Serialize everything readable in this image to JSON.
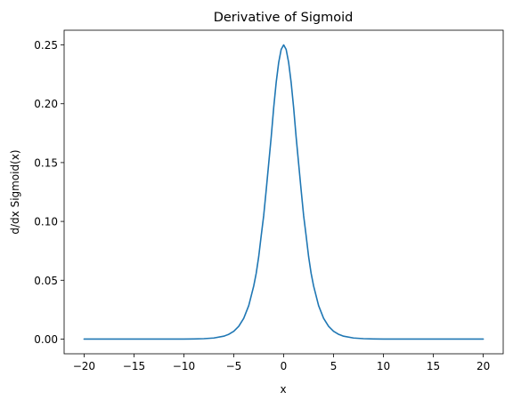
{
  "chart_data": {
    "type": "line",
    "title": "Derivative of Sigmoid",
    "xlabel": "x",
    "ylabel": "d/dx Sigmoid(x)",
    "xlim": [
      -22,
      22
    ],
    "ylim": [
      -0.0125,
      0.2625
    ],
    "x_ticks": [
      -20,
      -15,
      -10,
      -5,
      0,
      5,
      10,
      15,
      20
    ],
    "x_tick_labels": [
      "−20",
      "−15",
      "−10",
      "−5",
      "0",
      "5",
      "10",
      "15",
      "20"
    ],
    "y_ticks": [
      0.0,
      0.05,
      0.1,
      0.15,
      0.2,
      0.25
    ],
    "y_tick_labels": [
      "0.00",
      "0.05",
      "0.10",
      "0.15",
      "0.20",
      "0.25"
    ],
    "grid": false,
    "legend": false,
    "series": [
      {
        "color": "#1f77b4",
        "x": [
          -20,
          -18,
          -16,
          -14,
          -12,
          -10,
          -9,
          -8,
          -7,
          -6,
          -5.5,
          -5,
          -4.5,
          -4,
          -3.5,
          -3,
          -2.75,
          -2.5,
          -2.25,
          -2,
          -1.75,
          -1.5,
          -1.25,
          -1,
          -0.75,
          -0.5,
          -0.25,
          0,
          0.25,
          0.5,
          0.75,
          1,
          1.25,
          1.5,
          1.75,
          2,
          2.25,
          2.5,
          2.75,
          3,
          3.5,
          4,
          4.5,
          5,
          5.5,
          6,
          7,
          8,
          9,
          10,
          12,
          14,
          16,
          18,
          20
        ],
        "y": [
          0.0,
          0.0,
          0.0,
          1e-06,
          6e-06,
          4.5e-05,
          0.000123,
          0.000335,
          0.00091,
          0.002467,
          0.004054,
          0.006648,
          0.010866,
          0.017663,
          0.028453,
          0.045177,
          0.055989,
          0.070104,
          0.087932,
          0.104994,
          0.126615,
          0.149146,
          0.171578,
          0.196612,
          0.218096,
          0.235004,
          0.246134,
          0.25,
          0.246134,
          0.235004,
          0.218096,
          0.196612,
          0.171578,
          0.149146,
          0.126615,
          0.104994,
          0.087932,
          0.070104,
          0.055989,
          0.045177,
          0.028453,
          0.017663,
          0.010866,
          0.006648,
          0.004054,
          0.002467,
          0.00091,
          0.000335,
          0.000123,
          4.5e-05,
          6e-06,
          1e-06,
          0.0,
          0.0,
          0.0
        ]
      }
    ]
  }
}
